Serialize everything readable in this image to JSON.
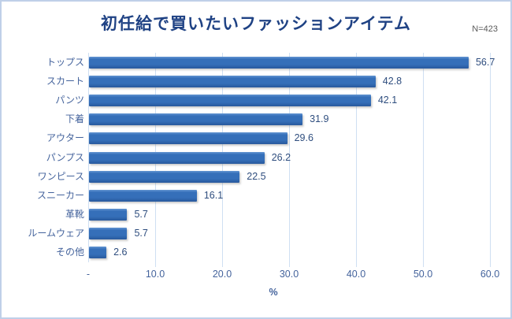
{
  "chart_data": {
    "type": "bar",
    "orientation": "horizontal",
    "title": "初任給で買いたいファッションアイテム",
    "note": "N=423",
    "xlabel": "%",
    "categories": [
      "トップス",
      "スカート",
      "パンツ",
      "下着",
      "アウター",
      "パンプス",
      "ワンピース",
      "スニーカー",
      "革靴",
      "ルームウェア",
      "その他"
    ],
    "values": [
      56.7,
      42.8,
      42.1,
      31.9,
      29.6,
      26.2,
      22.5,
      16.1,
      5.7,
      5.7,
      2.6
    ],
    "value_labels": [
      "56.7",
      "42.8",
      "42.1",
      "31.9",
      "29.6",
      "26.2",
      "22.5",
      "16.1",
      "5.7",
      "5.7",
      "2.6"
    ],
    "x_ticks": [
      {
        "value": 0,
        "label": "-"
      },
      {
        "value": 10,
        "label": "10.0"
      },
      {
        "value": 20,
        "label": "20.0"
      },
      {
        "value": 30,
        "label": "30.0"
      },
      {
        "value": 40,
        "label": "40.0"
      },
      {
        "value": 50,
        "label": "50.0"
      },
      {
        "value": 60,
        "label": "60.0"
      }
    ],
    "xlim": [
      0,
      60
    ],
    "grid": true,
    "legend": false,
    "colors": {
      "bar_top": "#6496d2",
      "bar_mid": "#356fb9",
      "bar_bottom": "#28599d",
      "gridline": "#cfdff2",
      "title": "#1f4284",
      "category_label": "#44639c",
      "value_label": "#2e4d7e",
      "note": "#595959",
      "frame_border": "#bfd0e8"
    }
  }
}
